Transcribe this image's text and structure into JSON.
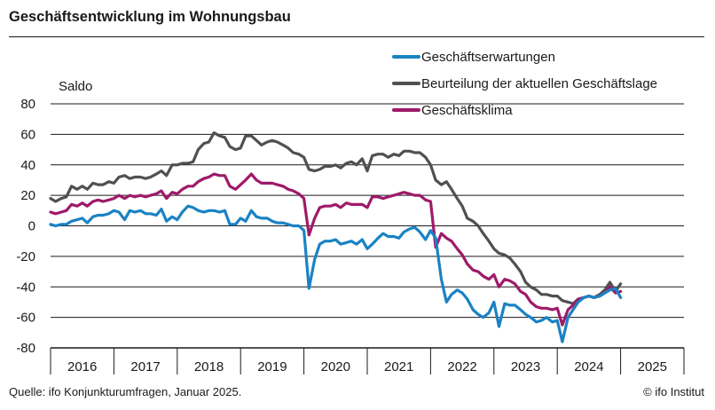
{
  "title": "Geschäftsentwicklung im Wohnungsbau",
  "source": "Quelle: ifo Konjunkturumfragen, Januar 2025.",
  "copyright": "© ifo Institut",
  "chart_data": {
    "type": "line",
    "ylabel": "Saldo",
    "ylim": [
      -80,
      80
    ],
    "yticks": [
      80,
      60,
      40,
      20,
      0,
      -20,
      -40,
      -60,
      -80
    ],
    "xlim": [
      2016,
      2026
    ],
    "xticks": [
      "2016",
      "2017",
      "2018",
      "2019",
      "2020",
      "2021",
      "2022",
      "2023",
      "2024",
      "2025"
    ],
    "grid": "horizontal",
    "legend_position": "top-right",
    "series": [
      {
        "name": "Geschäftserwartungen",
        "color": "#1a82c4",
        "x": [
          2016.0,
          2016.08,
          2016.17,
          2016.25,
          2016.33,
          2016.42,
          2016.5,
          2016.58,
          2016.67,
          2016.75,
          2016.83,
          2016.92,
          2017.0,
          2017.08,
          2017.17,
          2017.25,
          2017.33,
          2017.42,
          2017.5,
          2017.58,
          2017.67,
          2017.75,
          2017.83,
          2017.92,
          2018.0,
          2018.08,
          2018.17,
          2018.25,
          2018.33,
          2018.42,
          2018.5,
          2018.58,
          2018.67,
          2018.75,
          2018.83,
          2018.92,
          2019.0,
          2019.08,
          2019.17,
          2019.25,
          2019.33,
          2019.42,
          2019.5,
          2019.58,
          2019.67,
          2019.75,
          2019.83,
          2019.92,
          2020.0,
          2020.08,
          2020.17,
          2020.25,
          2020.33,
          2020.42,
          2020.5,
          2020.58,
          2020.67,
          2020.75,
          2020.83,
          2020.92,
          2021.0,
          2021.08,
          2021.17,
          2021.25,
          2021.33,
          2021.42,
          2021.5,
          2021.58,
          2021.67,
          2021.75,
          2021.83,
          2021.92,
          2022.0,
          2022.08,
          2022.17,
          2022.25,
          2022.33,
          2022.42,
          2022.5,
          2022.58,
          2022.67,
          2022.75,
          2022.83,
          2022.92,
          2023.0,
          2023.08,
          2023.17,
          2023.25,
          2023.33,
          2023.42,
          2023.5,
          2023.58,
          2023.67,
          2023.75,
          2023.83,
          2023.92,
          2024.0,
          2024.08,
          2024.17,
          2024.25,
          2024.33,
          2024.42,
          2024.5,
          2024.58,
          2024.67,
          2024.75,
          2024.83,
          2024.92,
          2025.0
        ],
        "y": [
          1,
          0,
          1,
          1,
          3,
          4,
          5,
          2,
          6,
          7,
          7,
          8,
          10,
          9,
          4,
          10,
          9,
          10,
          8,
          8,
          7,
          11,
          3,
          6,
          4,
          9,
          13,
          12,
          10,
          9,
          10,
          10,
          9,
          10,
          1,
          1,
          5,
          3,
          10,
          6,
          5,
          5,
          3,
          2,
          2,
          1,
          0,
          0,
          -3,
          -41,
          -22,
          -12,
          -10,
          -10,
          -9,
          -12,
          -11,
          -10,
          -12,
          -9,
          -15,
          -12,
          -8,
          -5,
          -7,
          -7,
          -8,
          -4,
          -2,
          -1,
          -4,
          -9,
          -3,
          -8,
          -35,
          -50,
          -45,
          -42,
          -44,
          -48,
          -55,
          -58,
          -60,
          -57,
          -50,
          -66,
          -51,
          -52,
          -52,
          -55,
          -58,
          -60,
          -63,
          -62,
          -60,
          -63,
          -62,
          -76,
          -60,
          -55,
          -50,
          -47,
          -46,
          -47,
          -46,
          -44,
          -42,
          -41,
          -47
        ]
      },
      {
        "name": "Beurteilung der aktuellen Geschäftslage",
        "color": "#505050",
        "x": [
          2016.0,
          2016.08,
          2016.17,
          2016.25,
          2016.33,
          2016.42,
          2016.5,
          2016.58,
          2016.67,
          2016.75,
          2016.83,
          2016.92,
          2017.0,
          2017.08,
          2017.17,
          2017.25,
          2017.33,
          2017.42,
          2017.5,
          2017.58,
          2017.67,
          2017.75,
          2017.83,
          2017.92,
          2018.0,
          2018.08,
          2018.17,
          2018.25,
          2018.33,
          2018.42,
          2018.5,
          2018.58,
          2018.67,
          2018.75,
          2018.83,
          2018.92,
          2019.0,
          2019.08,
          2019.17,
          2019.25,
          2019.33,
          2019.42,
          2019.5,
          2019.58,
          2019.67,
          2019.75,
          2019.83,
          2019.92,
          2020.0,
          2020.08,
          2020.17,
          2020.25,
          2020.33,
          2020.42,
          2020.5,
          2020.58,
          2020.67,
          2020.75,
          2020.83,
          2020.92,
          2021.0,
          2021.08,
          2021.17,
          2021.25,
          2021.33,
          2021.42,
          2021.5,
          2021.58,
          2021.67,
          2021.75,
          2021.83,
          2021.92,
          2022.0,
          2022.08,
          2022.17,
          2022.25,
          2022.33,
          2022.42,
          2022.5,
          2022.58,
          2022.67,
          2022.75,
          2022.83,
          2022.92,
          2023.0,
          2023.08,
          2023.17,
          2023.25,
          2023.33,
          2023.42,
          2023.5,
          2023.58,
          2023.67,
          2023.75,
          2023.83,
          2023.92,
          2024.0,
          2024.08,
          2024.17,
          2024.25,
          2024.33,
          2024.42,
          2024.5,
          2024.58,
          2024.67,
          2024.75,
          2024.83,
          2024.92,
          2025.0
        ],
        "y": [
          18,
          16,
          18,
          19,
          26,
          24,
          26,
          24,
          28,
          27,
          27,
          29,
          28,
          32,
          33,
          31,
          32,
          32,
          31,
          32,
          34,
          36,
          33,
          40,
          40,
          41,
          41,
          42,
          50,
          54,
          55,
          61,
          59,
          58,
          52,
          50,
          51,
          59,
          59,
          56,
          53,
          55,
          56,
          55,
          53,
          51,
          48,
          47,
          45,
          37,
          36,
          37,
          39,
          39,
          40,
          38,
          41,
          42,
          40,
          44,
          36,
          46,
          47,
          47,
          45,
          47,
          46,
          49,
          49,
          48,
          48,
          45,
          40,
          30,
          27,
          29,
          24,
          18,
          13,
          5,
          3,
          0,
          -5,
          -10,
          -15,
          -18,
          -19,
          -21,
          -25,
          -30,
          -37,
          -40,
          -42,
          -45,
          -45,
          -46,
          -46,
          -49,
          -50,
          -51,
          -48,
          -47,
          -46,
          -47,
          -45,
          -42,
          -37,
          -43,
          -38
        ]
      },
      {
        "name": "Geschäftsklima",
        "color": "#9e1a6a",
        "x": [
          2016.0,
          2016.08,
          2016.17,
          2016.25,
          2016.33,
          2016.42,
          2016.5,
          2016.58,
          2016.67,
          2016.75,
          2016.83,
          2016.92,
          2017.0,
          2017.08,
          2017.17,
          2017.25,
          2017.33,
          2017.42,
          2017.5,
          2017.58,
          2017.67,
          2017.75,
          2017.83,
          2017.92,
          2018.0,
          2018.08,
          2018.17,
          2018.25,
          2018.33,
          2018.42,
          2018.5,
          2018.58,
          2018.67,
          2018.75,
          2018.83,
          2018.92,
          2019.0,
          2019.08,
          2019.17,
          2019.25,
          2019.33,
          2019.42,
          2019.5,
          2019.58,
          2019.67,
          2019.75,
          2019.83,
          2019.92,
          2020.0,
          2020.08,
          2020.17,
          2020.25,
          2020.33,
          2020.42,
          2020.5,
          2020.58,
          2020.67,
          2020.75,
          2020.83,
          2020.92,
          2021.0,
          2021.08,
          2021.17,
          2021.25,
          2021.33,
          2021.42,
          2021.5,
          2021.58,
          2021.67,
          2021.75,
          2021.83,
          2021.92,
          2022.0,
          2022.08,
          2022.17,
          2022.25,
          2022.33,
          2022.42,
          2022.5,
          2022.58,
          2022.67,
          2022.75,
          2022.83,
          2022.92,
          2023.0,
          2023.08,
          2023.17,
          2023.25,
          2023.33,
          2023.42,
          2023.5,
          2023.58,
          2023.67,
          2023.75,
          2023.83,
          2023.92,
          2024.0,
          2024.08,
          2024.17,
          2024.25,
          2024.33,
          2024.42,
          2024.5,
          2024.58,
          2024.67,
          2024.75,
          2024.83,
          2024.92,
          2025.0
        ],
        "y": [
          9,
          8,
          9,
          10,
          14,
          13,
          15,
          13,
          16,
          17,
          16,
          17,
          18,
          20,
          18,
          20,
          19,
          20,
          19,
          20,
          21,
          23,
          18,
          22,
          21,
          24,
          26,
          26,
          29,
          31,
          32,
          34,
          33,
          33,
          26,
          24,
          27,
          30,
          34,
          30,
          28,
          28,
          28,
          27,
          26,
          24,
          23,
          21,
          18,
          -6,
          5,
          12,
          13,
          13,
          14,
          12,
          15,
          14,
          14,
          14,
          12,
          19,
          19,
          18,
          19,
          20,
          21,
          22,
          21,
          20,
          20,
          17,
          16,
          -14,
          -5,
          -8,
          -10,
          -15,
          -19,
          -25,
          -29,
          -30,
          -33,
          -35,
          -32,
          -40,
          -35,
          -36,
          -38,
          -43,
          -45,
          -50,
          -53,
          -54,
          -54,
          -55,
          -54,
          -65,
          -55,
          -52,
          -48,
          -47,
          -46,
          -47,
          -46,
          -44,
          -40,
          -44,
          -43
        ]
      }
    ]
  }
}
